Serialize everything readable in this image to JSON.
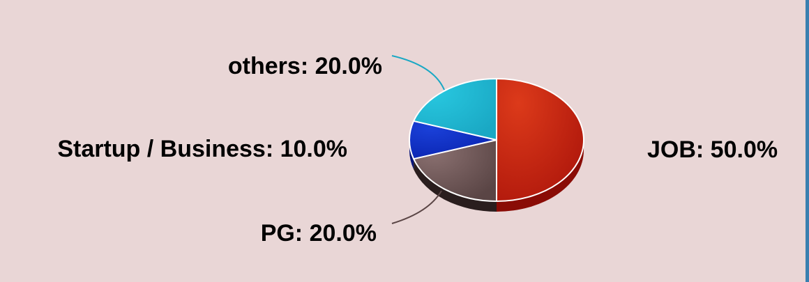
{
  "chart_data": {
    "type": "pie",
    "style": "3d",
    "title": "",
    "slices": [
      {
        "label": "JOB",
        "value": 50.0,
        "display": "JOB: 50.0%",
        "color": "#b0180c",
        "highlight": "#dc3a1a",
        "side": "#8a0c06"
      },
      {
        "label": "PG",
        "value": 20.0,
        "display": "PG: 20.0%",
        "color": "#5a4545",
        "highlight": "#8a7070",
        "side": "#2a1e1e"
      },
      {
        "label": "Startup / Business",
        "value": 10.0,
        "display": "Startup / Business: 10.0%",
        "color": "#0a24b0",
        "highlight": "#1a40d8",
        "side": "#06157a"
      },
      {
        "label": "others",
        "value": 20.0,
        "display": "others: 20.0%",
        "color": "#1aa8c4",
        "highlight": "#28c8e0",
        "side": "#0c7a90"
      }
    ],
    "legend": "none"
  }
}
